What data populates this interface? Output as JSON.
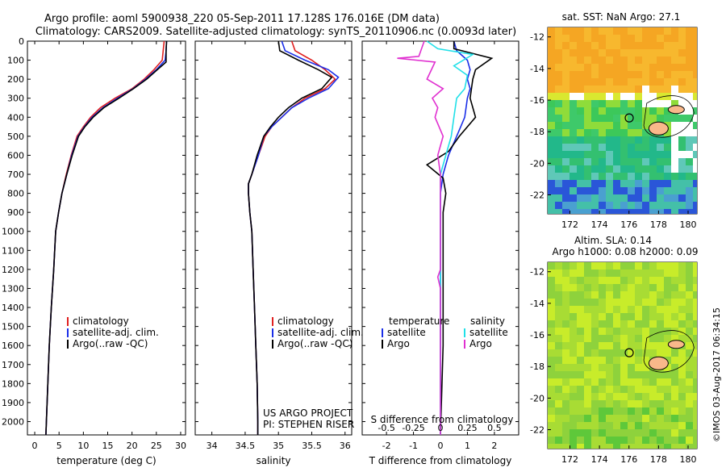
{
  "header": {
    "line1": "Argo profile: aoml 5900938_220 05-Sep-2011 17.128S 176.016E (DM data)",
    "line2": "Climatology: CARS2009. Satellite-adjusted climatology: synTS_20110906.nc (0.0093d later)"
  },
  "colors": {
    "climatology": "#e02020",
    "satellite": "#1a2ee8",
    "argo": "#000000",
    "salinity_satellite": "#20e0e8",
    "salinity_argo": "#e030d0"
  },
  "chart_data": [
    {
      "type": "line",
      "panel": "temperature",
      "xlabel": "temperature (deg C)",
      "ylabel": "",
      "xlim": [
        -1.5,
        31
      ],
      "ylim": [
        2070,
        0
      ],
      "xticks": [
        0,
        5,
        10,
        15,
        20,
        25,
        30
      ],
      "xticklabels": [
        "0",
        "5",
        "10",
        "15",
        "20",
        "25",
        "30"
      ],
      "yticks": [
        0,
        100,
        200,
        300,
        400,
        500,
        600,
        700,
        800,
        900,
        1000,
        1100,
        1200,
        1300,
        1400,
        1500,
        1600,
        1700,
        1800,
        1900,
        2000
      ],
      "yticklabels": [
        "0",
        "100",
        "200",
        "300",
        "400",
        "500",
        "600",
        "700",
        "800",
        "900",
        "1000",
        "1100",
        "1200",
        "1300",
        "1400",
        "1500",
        "1600",
        "1700",
        "1800",
        "1900",
        "2000"
      ],
      "legend": [
        "climatology",
        "satellite-adj. clim.",
        "Argo(..raw -QC)"
      ],
      "legend_position": "lower-center",
      "series": [
        {
          "name": "climatology",
          "color": "#e02020",
          "points": [
            [
              26.6,
              0
            ],
            [
              26.4,
              50
            ],
            [
              26.2,
              100
            ],
            [
              24.5,
              150
            ],
            [
              22.5,
              200
            ],
            [
              20.0,
              250
            ],
            [
              16.5,
              300
            ],
            [
              13.5,
              350
            ],
            [
              11.5,
              400
            ],
            [
              10.0,
              450
            ],
            [
              8.7,
              500
            ],
            [
              7.5,
              600
            ],
            [
              6.5,
              700
            ],
            [
              5.6,
              800
            ],
            [
              4.9,
              900
            ],
            [
              4.3,
              1000
            ],
            [
              3.9,
              1200
            ],
            [
              3.4,
              1400
            ],
            [
              3.0,
              1600
            ],
            [
              2.7,
              1800
            ],
            [
              2.4,
              2000
            ],
            [
              2.3,
              2070
            ]
          ]
        },
        {
          "name": "satellite-adj. clim.",
          "color": "#1a2ee8",
          "points": [
            [
              27.1,
              0
            ],
            [
              27.0,
              50
            ],
            [
              26.8,
              100
            ],
            [
              25.0,
              150
            ],
            [
              22.8,
              200
            ],
            [
              20.2,
              250
            ],
            [
              17.0,
              300
            ],
            [
              14.0,
              350
            ],
            [
              11.8,
              400
            ],
            [
              10.2,
              450
            ],
            [
              8.9,
              500
            ],
            [
              7.6,
              600
            ],
            [
              6.6,
              700
            ],
            [
              5.6,
              800
            ],
            [
              4.9,
              900
            ],
            [
              4.3,
              1000
            ],
            [
              3.9,
              1200
            ],
            [
              3.4,
              1400
            ],
            [
              3.0,
              1600
            ],
            [
              2.7,
              1800
            ],
            [
              2.4,
              2000
            ],
            [
              2.3,
              2070
            ]
          ]
        },
        {
          "name": "Argo(..raw -QC)",
          "color": "#000000",
          "points": [
            [
              27.1,
              0
            ],
            [
              27.0,
              50
            ],
            [
              27.0,
              110
            ],
            [
              25.2,
              150
            ],
            [
              23.0,
              200
            ],
            [
              20.3,
              250
            ],
            [
              17.3,
              300
            ],
            [
              14.2,
              350
            ],
            [
              12.0,
              400
            ],
            [
              10.3,
              450
            ],
            [
              9.0,
              500
            ],
            [
              7.7,
              600
            ],
            [
              6.6,
              700
            ],
            [
              5.6,
              800
            ],
            [
              4.9,
              900
            ],
            [
              4.3,
              1000
            ],
            [
              3.9,
              1200
            ],
            [
              3.4,
              1400
            ],
            [
              3.0,
              1600
            ],
            [
              2.7,
              1800
            ],
            [
              2.4,
              2000
            ],
            [
              2.3,
              2070
            ]
          ]
        }
      ]
    },
    {
      "type": "line",
      "panel": "salinity",
      "xlabel": "salinity",
      "xlim": [
        33.75,
        36.1
      ],
      "ylim": [
        2070,
        0
      ],
      "xticks": [
        34,
        34.5,
        35,
        35.5,
        36
      ],
      "xticklabels": [
        "34",
        "34.5",
        "35",
        "35.5",
        "36"
      ],
      "legend": [
        "climatology",
        "satellite-adj. clim.",
        "Argo(..raw -QC)"
      ],
      "legend_position": "lower-right",
      "annotations": [
        "US ARGO PROJECT",
        "PI: STEPHEN RISER"
      ],
      "series": [
        {
          "name": "climatology",
          "color": "#e02020",
          "points": [
            [
              35.2,
              0
            ],
            [
              35.25,
              50
            ],
            [
              35.5,
              100
            ],
            [
              35.7,
              150
            ],
            [
              35.85,
              200
            ],
            [
              35.7,
              250
            ],
            [
              35.4,
              300
            ],
            [
              35.2,
              350
            ],
            [
              35.05,
              400
            ],
            [
              34.9,
              450
            ],
            [
              34.8,
              500
            ],
            [
              34.7,
              600
            ],
            [
              34.6,
              700
            ],
            [
              34.55,
              750
            ],
            [
              34.55,
              800
            ],
            [
              34.57,
              900
            ],
            [
              34.6,
              1000
            ],
            [
              34.62,
              1200
            ],
            [
              34.64,
              1400
            ],
            [
              34.66,
              1600
            ],
            [
              34.68,
              1800
            ],
            [
              34.69,
              2000
            ],
            [
              34.69,
              2070
            ]
          ]
        },
        {
          "name": "satellite-adj. clim.",
          "color": "#1a2ee8",
          "points": [
            [
              35.05,
              0
            ],
            [
              35.1,
              50
            ],
            [
              35.4,
              100
            ],
            [
              35.75,
              150
            ],
            [
              35.9,
              190
            ],
            [
              35.75,
              250
            ],
            [
              35.45,
              300
            ],
            [
              35.2,
              350
            ],
            [
              35.05,
              400
            ],
            [
              34.9,
              450
            ],
            [
              34.78,
              500
            ],
            [
              34.7,
              600
            ],
            [
              34.6,
              700
            ],
            [
              34.55,
              750
            ],
            [
              34.55,
              800
            ],
            [
              34.57,
              900
            ],
            [
              34.6,
              1000
            ],
            [
              34.62,
              1200
            ],
            [
              34.64,
              1400
            ],
            [
              34.66,
              1600
            ],
            [
              34.68,
              1800
            ],
            [
              34.69,
              2000
            ],
            [
              34.69,
              2070
            ]
          ]
        },
        {
          "name": "Argo(..raw -QC)",
          "color": "#000000",
          "points": [
            [
              35.0,
              0
            ],
            [
              35.02,
              50
            ],
            [
              35.3,
              100
            ],
            [
              35.6,
              150
            ],
            [
              35.8,
              190
            ],
            [
              35.65,
              250
            ],
            [
              35.35,
              300
            ],
            [
              35.15,
              350
            ],
            [
              35.0,
              400
            ],
            [
              34.88,
              450
            ],
            [
              34.78,
              500
            ],
            [
              34.68,
              600
            ],
            [
              34.6,
              700
            ],
            [
              34.55,
              750
            ],
            [
              34.55,
              800
            ],
            [
              34.57,
              900
            ],
            [
              34.6,
              1000
            ],
            [
              34.62,
              1200
            ],
            [
              34.64,
              1400
            ],
            [
              34.66,
              1600
            ],
            [
              34.68,
              1800
            ],
            [
              34.69,
              2000
            ],
            [
              34.69,
              2070
            ]
          ]
        }
      ]
    },
    {
      "type": "line",
      "panel": "difference",
      "xlabel": "T difference from climatology",
      "xlabel_top": "S difference from climatology",
      "xlim": [
        -2.9,
        2.9
      ],
      "ylim": [
        2070,
        0
      ],
      "xticks": [
        -2,
        -1,
        0,
        1,
        2
      ],
      "xticklabels": [
        "-2",
        "-1",
        "0",
        "1",
        "2"
      ],
      "top_ticks": [
        -0.5,
        -0.25,
        0,
        0.25,
        0.5
      ],
      "top_ticklabels": [
        "-0.5",
        "-0.25",
        "0",
        "0.25",
        "0.5"
      ],
      "legend_groups": [
        "temperature",
        "salinity"
      ],
      "legend": [
        "satellite",
        "Argo",
        "satellite",
        "Argo"
      ],
      "legend_position": "lower-center",
      "series": [
        {
          "name": "satellite",
          "group": "temperature",
          "color": "#1a2ee8",
          "points": [
            [
              0.5,
              0
            ],
            [
              0.6,
              50
            ],
            [
              1.0,
              100
            ],
            [
              1.1,
              150
            ],
            [
              1.0,
              200
            ],
            [
              1.1,
              250
            ],
            [
              1.0,
              300
            ],
            [
              0.9,
              400
            ],
            [
              0.6,
              500
            ],
            [
              0.3,
              600
            ],
            [
              0.1,
              700
            ],
            [
              0.0,
              800
            ],
            [
              0.0,
              1000
            ],
            [
              0.0,
              1400
            ],
            [
              0.0,
              2070
            ]
          ]
        },
        {
          "name": "Argo",
          "group": "temperature",
          "color": "#000000",
          "points": [
            [
              0.5,
              0
            ],
            [
              0.5,
              40
            ],
            [
              1.9,
              90
            ],
            [
              1.3,
              150
            ],
            [
              1.2,
              200
            ],
            [
              1.1,
              300
            ],
            [
              1.3,
              400
            ],
            [
              0.7,
              500
            ],
            [
              0.3,
              580
            ],
            [
              -0.5,
              650
            ],
            [
              0.1,
              720
            ],
            [
              0.2,
              800
            ],
            [
              0.1,
              900
            ],
            [
              0.1,
              1100
            ],
            [
              0.1,
              1400
            ],
            [
              0.1,
              1600
            ],
            [
              0.0,
              2070
            ]
          ]
        },
        {
          "name": "satellite",
          "group": "salinity",
          "color": "#20e0e8",
          "points": [
            [
              -0.5,
              0
            ],
            [
              -0.1,
              40
            ],
            [
              1.2,
              70
            ],
            [
              0.5,
              130
            ],
            [
              1.0,
              180
            ],
            [
              0.9,
              250
            ],
            [
              0.6,
              300
            ],
            [
              0.5,
              400
            ],
            [
              0.4,
              500
            ],
            [
              0.2,
              600
            ],
            [
              0.0,
              700
            ],
            [
              0.0,
              800
            ],
            [
              0.0,
              1200
            ],
            [
              0.0,
              2070
            ]
          ]
        },
        {
          "name": "Argo",
          "group": "salinity",
          "color": "#e030d0",
          "points": [
            [
              -0.6,
              0
            ],
            [
              -0.8,
              80
            ],
            [
              -1.6,
              90
            ],
            [
              -0.2,
              110
            ],
            [
              -0.5,
              200
            ],
            [
              0.1,
              250
            ],
            [
              -0.3,
              300
            ],
            [
              -0.1,
              350
            ],
            [
              -0.2,
              400
            ],
            [
              0.1,
              500
            ],
            [
              -0.1,
              600
            ],
            [
              0.0,
              700
            ],
            [
              0.0,
              900
            ],
            [
              0.0,
              1200
            ],
            [
              -0.1,
              1240
            ],
            [
              0.0,
              1300
            ],
            [
              0.0,
              2070
            ]
          ]
        }
      ]
    },
    {
      "type": "heatmap",
      "panel": "sst_map",
      "title": "sat. SST: NaN Argo: 27.1",
      "xlim": [
        170.5,
        180.6
      ],
      "ylim": [
        -23.2,
        -11.4
      ],
      "xticks": [
        172,
        174,
        176,
        178,
        180
      ],
      "xticklabels": [
        "172",
        "174",
        "176",
        "178",
        "180"
      ],
      "yticks": [
        -12,
        -14,
        -16,
        -18,
        -20,
        -22
      ],
      "yticklabels": [
        "-12",
        "-14",
        "-16",
        "-18",
        "-20",
        "-22"
      ],
      "marker": [
        176.016,
        -17.128
      ]
    },
    {
      "type": "heatmap",
      "panel": "sla_map",
      "title": "Altim. SLA: 0.14",
      "subtitle": "Argo h1000: 0.08 h2000: 0.09",
      "xlim": [
        170.5,
        180.6
      ],
      "ylim": [
        -23.2,
        -11.4
      ],
      "xticks": [
        172,
        174,
        176,
        178,
        180
      ],
      "xticklabels": [
        "172",
        "174",
        "176",
        "178",
        "180"
      ],
      "yticks": [
        -12,
        -14,
        -16,
        -18,
        -20,
        -22
      ],
      "yticklabels": [
        "-12",
        "-14",
        "-16",
        "-18",
        "-20",
        "-22"
      ],
      "marker": [
        176.016,
        -17.128
      ]
    }
  ],
  "credit": "©IMOS 03-Aug-2017 06:34:15"
}
